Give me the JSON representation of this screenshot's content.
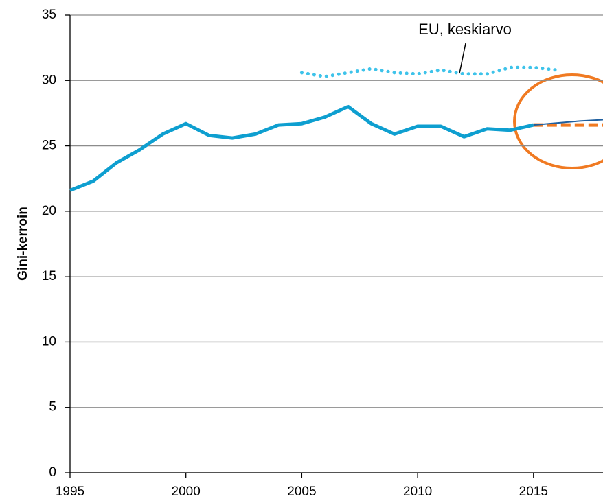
{
  "chart_data": {
    "type": "line",
    "y_label": "Gini-kerroin",
    "x": [
      1995,
      1996,
      1997,
      1998,
      1999,
      2000,
      2001,
      2002,
      2003,
      2004,
      2005,
      2006,
      2007,
      2008,
      2009,
      2010,
      2011,
      2012,
      2013,
      2014,
      2015,
      2016,
      2017,
      2018
    ],
    "series": [
      {
        "color": "#0e9fd0",
        "style": "solid",
        "width": 5,
        "values": [
          21.6,
          22.3,
          23.7,
          24.7,
          25.9,
          26.7,
          25.8,
          25.6,
          25.9,
          26.6,
          26.7,
          27.2,
          28.0,
          26.7,
          25.9,
          26.5,
          26.5,
          25.7,
          26.3,
          26.2,
          26.6,
          null,
          null,
          null
        ]
      },
      {
        "name": "EU, keskiarvo",
        "color": "#3ec3ea",
        "style": "dotted",
        "width": 5,
        "values": [
          null,
          null,
          null,
          null,
          null,
          null,
          null,
          null,
          null,
          null,
          30.6,
          30.3,
          30.6,
          30.9,
          30.6,
          30.5,
          30.8,
          30.5,
          30.5,
          31.0,
          31.0,
          30.8,
          null,
          null
        ]
      },
      {
        "color": "#f07a22",
        "style": "dashed",
        "width": 5,
        "values": [
          null,
          null,
          null,
          null,
          null,
          null,
          null,
          null,
          null,
          null,
          null,
          null,
          null,
          null,
          null,
          null,
          null,
          null,
          null,
          null,
          26.6,
          26.6,
          26.6,
          26.6
        ]
      },
      {
        "color": "#1f5f9f",
        "style": "solid",
        "width": 2,
        "values": [
          null,
          null,
          null,
          null,
          null,
          null,
          null,
          null,
          null,
          null,
          null,
          null,
          null,
          null,
          null,
          null,
          null,
          null,
          null,
          null,
          26.6,
          26.75,
          26.9,
          27.0
        ]
      }
    ],
    "xlim": [
      1995,
      2018
    ],
    "ylim": [
      0,
      35
    ],
    "xticks": [
      1995,
      2000,
      2005,
      2010,
      2015
    ],
    "yticks": [
      0,
      5,
      10,
      15,
      20,
      25,
      30,
      35
    ],
    "grid": true
  }
}
